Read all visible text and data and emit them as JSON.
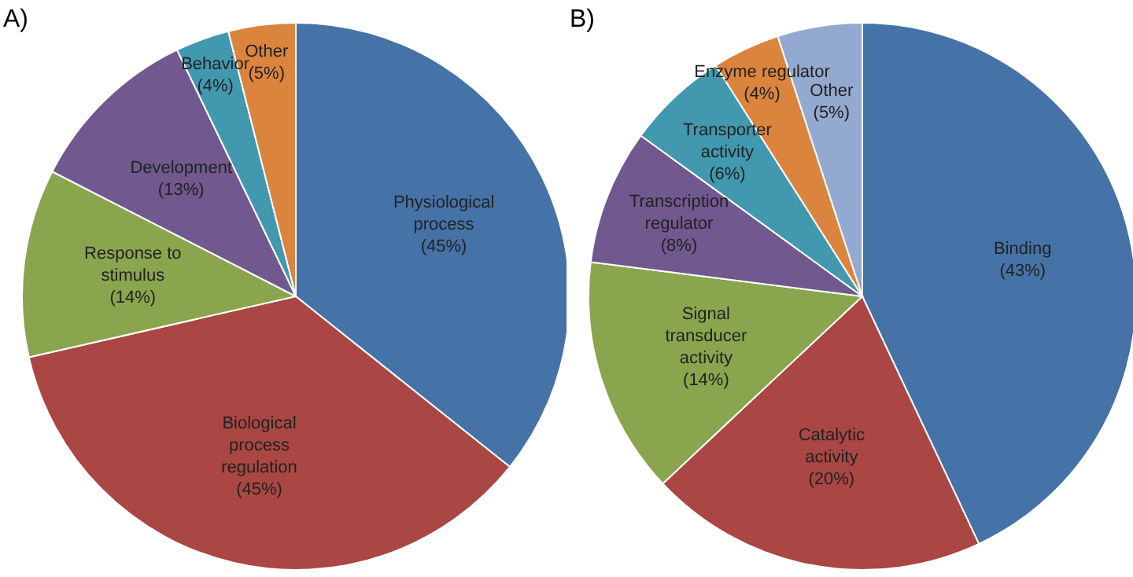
{
  "chart_data": [
    {
      "type": "pie",
      "title": "A)",
      "categories": [
        "Physiological process",
        "Biological process regulation",
        "Response to stimulus",
        "Development",
        "Behavior",
        "Other"
      ],
      "values": [
        45,
        45,
        14,
        13,
        4,
        5
      ],
      "value_labels": [
        "(45%)",
        "(45%)",
        "(14%)",
        "(13%)",
        "(4%)",
        "(5%)"
      ],
      "colors": [
        "#4572a7",
        "#aa4643",
        "#89a54e",
        "#71588f",
        "#4198af",
        "#db843d"
      ],
      "legend": false
    },
    {
      "type": "pie",
      "title": "B)",
      "categories": [
        "Binding",
        "Catalytic activity",
        "Signal transducer activity",
        "Transcription regulator",
        "Transporter activity",
        "Enzyme regulator",
        "Other"
      ],
      "values": [
        43,
        20,
        14,
        8,
        6,
        4,
        5
      ],
      "value_labels": [
        "(43%)",
        "(20%)",
        "(14%)",
        "(8%)",
        "(6%)",
        "(4%)",
        "(5%)"
      ],
      "colors": [
        "#4572a7",
        "#aa4643",
        "#89a54e",
        "#71588f",
        "#4198af",
        "#db843d",
        "#93a9cf"
      ],
      "legend": false
    }
  ]
}
